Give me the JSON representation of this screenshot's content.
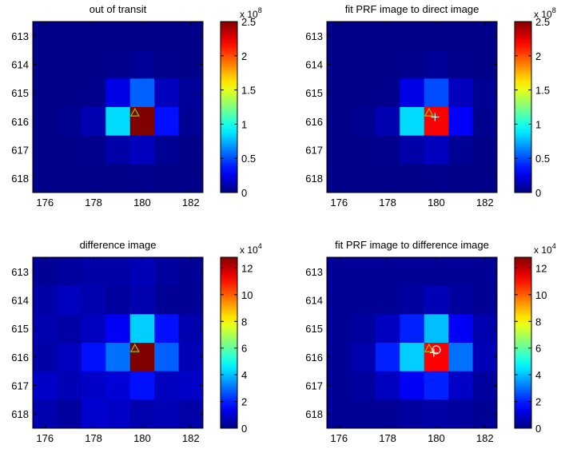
{
  "chart_data": [
    {
      "type": "heatmap",
      "title": "out of transit",
      "x": [
        176,
        177,
        178,
        179,
        180,
        181,
        182
      ],
      "y": [
        613,
        614,
        615,
        616,
        617,
        618
      ],
      "x_ticks": [
        "176",
        "178",
        "180",
        "182"
      ],
      "y_ticks": [
        "613",
        "614",
        "615",
        "616",
        "617",
        "618"
      ],
      "colorbar": {
        "min": 0,
        "max": 2.5,
        "ticks": [
          "0",
          "0.5",
          "1",
          "1.5",
          "2",
          "2.5"
        ],
        "exponent": "8"
      },
      "values": [
        [
          0.02,
          0.02,
          0.02,
          0.02,
          0.02,
          0.02,
          0.02
        ],
        [
          0.02,
          0.02,
          0.02,
          0.03,
          0.06,
          0.03,
          0.02
        ],
        [
          0.02,
          0.02,
          0.03,
          0.25,
          0.55,
          0.15,
          0.06
        ],
        [
          0.02,
          0.04,
          0.12,
          0.85,
          2.55,
          0.35,
          0.05
        ],
        [
          0.02,
          0.02,
          0.03,
          0.1,
          0.15,
          0.05,
          0.02
        ],
        [
          0.02,
          0.02,
          0.02,
          0.02,
          0.03,
          0.02,
          0.02
        ]
      ],
      "markers": [
        {
          "symbol": "triangle",
          "x": 179.7,
          "y": 615.7,
          "color": "#7fd000"
        }
      ]
    },
    {
      "type": "heatmap",
      "title": "fit PRF image to direct image",
      "x": [
        176,
        177,
        178,
        179,
        180,
        181,
        182
      ],
      "y": [
        613,
        614,
        615,
        616,
        617,
        618
      ],
      "x_ticks": [
        "176",
        "178",
        "180",
        "182"
      ],
      "y_ticks": [
        "613",
        "614",
        "615",
        "616",
        "617",
        "618"
      ],
      "colorbar": {
        "min": 0,
        "max": 2.5,
        "ticks": [
          "0",
          "0.5",
          "1",
          "1.5",
          "2",
          "2.5"
        ],
        "exponent": "8"
      },
      "values": [
        [
          0.02,
          0.02,
          0.02,
          0.02,
          0.02,
          0.02,
          0.02
        ],
        [
          0.02,
          0.02,
          0.02,
          0.03,
          0.06,
          0.03,
          0.02
        ],
        [
          0.02,
          0.02,
          0.03,
          0.25,
          0.5,
          0.15,
          0.05
        ],
        [
          0.02,
          0.04,
          0.12,
          0.85,
          2.2,
          0.3,
          0.04
        ],
        [
          0.02,
          0.02,
          0.03,
          0.1,
          0.15,
          0.05,
          0.02
        ],
        [
          0.02,
          0.02,
          0.02,
          0.02,
          0.03,
          0.02,
          0.02
        ]
      ],
      "markers": [
        {
          "symbol": "triangle",
          "x": 179.7,
          "y": 615.7,
          "color": "#7fd000"
        },
        {
          "symbol": "plus",
          "x": 179.95,
          "y": 615.85,
          "color": "#ffffff"
        }
      ]
    },
    {
      "type": "heatmap",
      "title": "difference image",
      "x": [
        176,
        177,
        178,
        179,
        180,
        181,
        182
      ],
      "y": [
        613,
        614,
        615,
        616,
        617,
        618
      ],
      "x_ticks": [
        "176",
        "178",
        "180",
        "182"
      ],
      "y_ticks": [
        "613",
        "614",
        "615",
        "616",
        "617",
        "618"
      ],
      "colorbar": {
        "min": 0,
        "max": 12.8,
        "ticks": [
          "0",
          "2",
          "4",
          "6",
          "8",
          "10",
          "12"
        ],
        "exponent": "4"
      },
      "values": [
        [
          0.3,
          0.4,
          0.5,
          0.5,
          0.7,
          0.4,
          0.3
        ],
        [
          0.5,
          0.8,
          0.6,
          0.4,
          0.6,
          0.3,
          0.3
        ],
        [
          0.6,
          0.5,
          0.8,
          1.5,
          4.2,
          1.8,
          0.6
        ],
        [
          0.5,
          0.8,
          1.8,
          3.0,
          12.8,
          2.8,
          0.7
        ],
        [
          0.9,
          0.7,
          0.9,
          1.1,
          1.8,
          0.8,
          0.9
        ],
        [
          0.6,
          0.4,
          1.0,
          0.9,
          0.6,
          0.7,
          0.5
        ]
      ],
      "markers": [
        {
          "symbol": "triangle",
          "x": 179.7,
          "y": 615.7,
          "color": "#7fd000"
        }
      ]
    },
    {
      "type": "heatmap",
      "title": "fit PRF image to difference image",
      "x": [
        176,
        177,
        178,
        179,
        180,
        181,
        182
      ],
      "y": [
        613,
        614,
        615,
        616,
        617,
        618
      ],
      "x_ticks": [
        "176",
        "178",
        "180",
        "182"
      ],
      "y_ticks": [
        "613",
        "614",
        "615",
        "616",
        "617",
        "618"
      ],
      "colorbar": {
        "min": 0,
        "max": 12.8,
        "ticks": [
          "0",
          "2",
          "4",
          "6",
          "8",
          "10",
          "12"
        ],
        "exponent": "4"
      },
      "values": [
        [
          0.3,
          0.3,
          0.3,
          0.3,
          0.3,
          0.3,
          0.3
        ],
        [
          0.3,
          0.3,
          0.3,
          0.4,
          0.7,
          0.4,
          0.3
        ],
        [
          0.3,
          0.4,
          0.8,
          2.0,
          4.0,
          1.5,
          0.6
        ],
        [
          0.3,
          0.6,
          2.0,
          4.2,
          11.2,
          3.0,
          0.7
        ],
        [
          0.3,
          0.4,
          0.8,
          1.5,
          2.0,
          0.9,
          0.4
        ],
        [
          0.3,
          0.3,
          0.3,
          0.4,
          0.5,
          0.4,
          0.3
        ]
      ],
      "markers": [
        {
          "symbol": "triangle",
          "x": 179.7,
          "y": 615.7,
          "color": "#7fd000"
        },
        {
          "symbol": "plus",
          "x": 179.9,
          "y": 615.85,
          "color": "#ffffff"
        },
        {
          "symbol": "circle",
          "x": 180.0,
          "y": 615.75,
          "color": "#ffffff"
        }
      ]
    }
  ]
}
